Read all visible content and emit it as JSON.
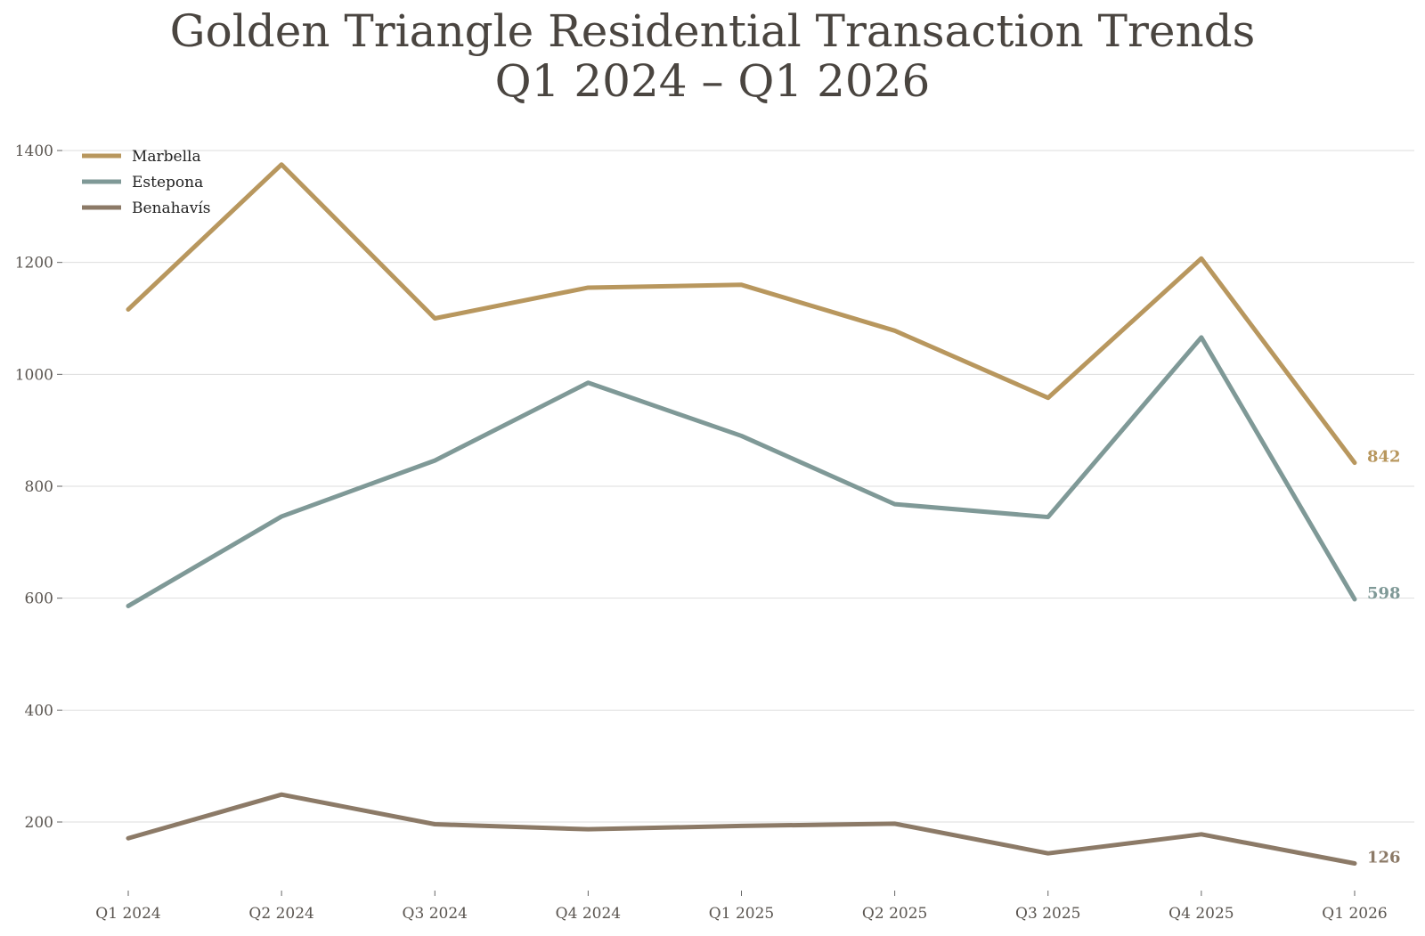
{
  "chart_data": {
    "type": "line",
    "title_lines": [
      "Golden Triangle Residential Transaction Trends",
      "Q1 2024 – Q1 2026"
    ],
    "xlabel": "",
    "ylabel": "",
    "categories": [
      "Q1 2024",
      "Q2 2024",
      "Q3 2024",
      "Q4 2024",
      "Q1 2025",
      "Q2 2025",
      "Q3 2025",
      "Q4 2025",
      "Q1 2026"
    ],
    "y_ticks": [
      200,
      400,
      600,
      800,
      1000,
      1200,
      1400
    ],
    "ylim": [
      75,
      1450
    ],
    "grid": true,
    "legend_position": "top-left",
    "series": [
      {
        "name": "Marbella",
        "color": "#b8975e",
        "values": [
          1116,
          1375,
          1100,
          1155,
          1160,
          1078,
          958,
          1207,
          842
        ],
        "end_label": "842"
      },
      {
        "name": "Estepona",
        "color": "#7f9997",
        "values": [
          586,
          746,
          846,
          985,
          890,
          768,
          745,
          1066,
          598
        ],
        "end_label": "598"
      },
      {
        "name": "Benahavís",
        "color": "#8c7a67",
        "values": [
          171,
          249,
          196,
          187,
          193,
          197,
          144,
          178,
          126
        ],
        "end_label": "126"
      }
    ]
  }
}
